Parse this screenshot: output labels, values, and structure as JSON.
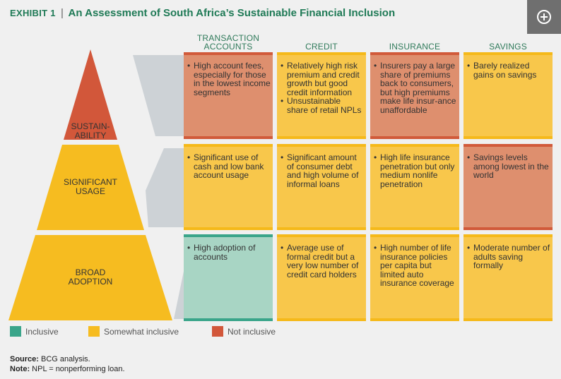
{
  "title": {
    "exhibit": "EXHIBIT 1",
    "separator": "|",
    "text": "An Assessment of South Africa’s Sustainable Financial Inclusion"
  },
  "expand_icon": "plus-circle-icon",
  "columns": [
    "TRANSACTION ACCOUNTS",
    "CREDIT",
    "INSURANCE",
    "SAVINGS"
  ],
  "tiers": [
    {
      "label": "SUSTAIN-ABILITY",
      "color": "#d2573a"
    },
    {
      "label": "SIGNIFICANT USAGE",
      "color": "#f6bc20"
    },
    {
      "label": "BROAD ADOPTION",
      "color": "#f6bc20"
    }
  ],
  "cells": [
    [
      {
        "rating": "not",
        "bullets": [
          "High account fees, especially for those in the lowest income segments"
        ]
      },
      {
        "rating": "somewhat",
        "bullets": [
          "Relatively high risk premium and credit growth but good credit information",
          "Unsustainable share of retail NPLs"
        ]
      },
      {
        "rating": "not",
        "bullets": [
          "Insurers pay a large share of premiums back to consumers, but high premiums make life insur-ance unaffordable"
        ]
      },
      {
        "rating": "somewhat",
        "bullets": [
          "Barely realized gains on savings"
        ]
      }
    ],
    [
      {
        "rating": "somewhat",
        "bullets": [
          "Significant use of cash and low bank account usage"
        ]
      },
      {
        "rating": "somewhat",
        "bullets": [
          "Significant amount of consumer debt and high volume of informal loans"
        ]
      },
      {
        "rating": "somewhat",
        "bullets": [
          "High life insurance penetration but only medium nonlife penetration"
        ]
      },
      {
        "rating": "not",
        "bullets": [
          "Savings levels among lowest in the world"
        ]
      }
    ],
    [
      {
        "rating": "inclusive",
        "bullets": [
          "High adoption of accounts"
        ]
      },
      {
        "rating": "somewhat",
        "bullets": [
          "Average use of formal credit but a very low number of credit card holders"
        ]
      },
      {
        "rating": "somewhat",
        "bullets": [
          "High number of life insurance policies per capita but limited auto insurance coverage"
        ]
      },
      {
        "rating": "somewhat",
        "bullets": [
          "Moderate number of adults saving formally"
        ]
      }
    ]
  ],
  "legend": [
    {
      "label": "Inclusive",
      "color": "#3aa58a"
    },
    {
      "label": "Somewhat inclusive",
      "color": "#f6bc20"
    },
    {
      "label": "Not inclusive",
      "color": "#d2573a"
    }
  ],
  "footnotes": {
    "source_label": "Source:",
    "source_text": " BCG analysis.",
    "note_label": "Note:",
    "note_text": " NPL = nonperforming loan."
  }
}
